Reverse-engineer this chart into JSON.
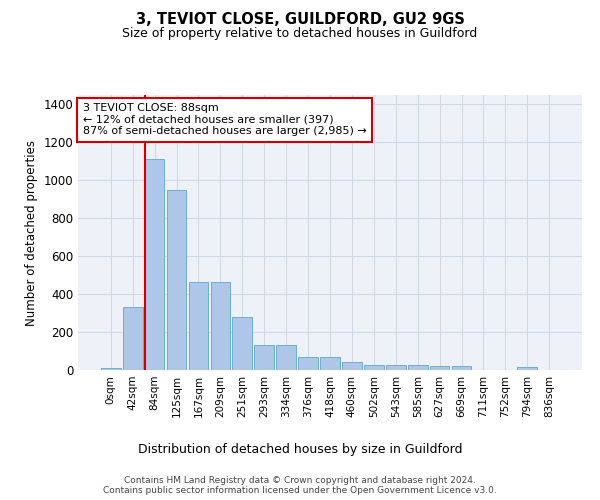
{
  "title": "3, TEVIOT CLOSE, GUILDFORD, GU2 9GS",
  "subtitle": "Size of property relative to detached houses in Guildford",
  "xlabel": "Distribution of detached houses by size in Guildford",
  "ylabel": "Number of detached properties",
  "bar_labels": [
    "0sqm",
    "42sqm",
    "84sqm",
    "125sqm",
    "167sqm",
    "209sqm",
    "251sqm",
    "293sqm",
    "334sqm",
    "376sqm",
    "418sqm",
    "460sqm",
    "502sqm",
    "543sqm",
    "585sqm",
    "627sqm",
    "669sqm",
    "711sqm",
    "752sqm",
    "794sqm",
    "836sqm"
  ],
  "bar_values": [
    10,
    330,
    1110,
    950,
    465,
    465,
    280,
    130,
    130,
    70,
    70,
    40,
    25,
    25,
    25,
    20,
    20,
    0,
    0,
    15,
    0
  ],
  "bar_color": "#aec6e8",
  "bar_edge_color": "#6aaed6",
  "grid_color": "#d0d8e8",
  "bg_color": "#eef2f8",
  "vline_x_index": 2,
  "vline_color": "#cc0000",
  "annotation_text": "3 TEVIOT CLOSE: 88sqm\n← 12% of detached houses are smaller (397)\n87% of semi-detached houses are larger (2,985) →",
  "annotation_box_color": "#cc0000",
  "footer_text": "Contains HM Land Registry data © Crown copyright and database right 2024.\nContains public sector information licensed under the Open Government Licence v3.0.",
  "ylim": [
    0,
    1450
  ],
  "yticks": [
    0,
    200,
    400,
    600,
    800,
    1000,
    1200,
    1400
  ]
}
